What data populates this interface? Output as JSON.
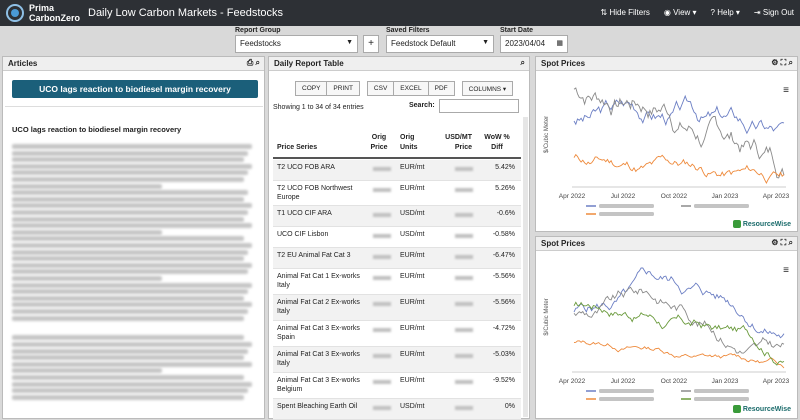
{
  "header": {
    "brand_line1": "Prima",
    "brand_line2": "CarbonZero",
    "title": "Daily Low Carbon Markets - Feedstocks",
    "menu": [
      "Hide Filters",
      "View",
      "Help",
      "Sign Out"
    ]
  },
  "filters": {
    "report_group_label": "Report Group",
    "report_group_value": "Feedstocks",
    "add_label": "+",
    "saved_filters_label": "Saved Filters",
    "saved_filters_value": "Feedstock Default",
    "start_date_label": "Start Date",
    "start_date_value": "2023/04/04"
  },
  "articles": {
    "panel_title": "Articles",
    "headline_button": "UCO lags reaction to biodiesel margin recovery",
    "article_title": "UCO lags reaction to biodiesel margin recovery"
  },
  "report": {
    "panel_title": "Daily Report Table",
    "buttons": [
      "COPY",
      "PRINT",
      "CSV",
      "EXCEL",
      "PDF",
      "COLUMNS ▾"
    ],
    "showing": "Showing 1 to 34 of 34 entries",
    "search_label": "Search:",
    "columns": [
      "Price Series",
      "Orig Price",
      "Orig Units",
      "USD/MT Price",
      "WoW % Diff"
    ],
    "rows": [
      {
        "series": "T2 UCO FOB ARA",
        "units": "EUR/mt",
        "diff": "5.42%"
      },
      {
        "series": "T2 UCO FOB Northwest Europe",
        "units": "EUR/mt",
        "diff": "5.26%"
      },
      {
        "series": "T1 UCO CIF ARA",
        "units": "USD/mt",
        "diff": "-0.6%"
      },
      {
        "series": "UCO CIF Lisbon",
        "units": "USD/mt",
        "diff": "-0.58%"
      },
      {
        "series": "T2 EU Animal Fat Cat 3",
        "units": "EUR/mt",
        "diff": "-6.47%"
      },
      {
        "series": "Animal Fat Cat 1 Ex-works Italy",
        "units": "EUR/mt",
        "diff": "-5.56%"
      },
      {
        "series": "Animal Fat Cat 2 Ex-works Italy",
        "units": "EUR/mt",
        "diff": "-5.56%"
      },
      {
        "series": "Animal Fat Cat 3 Ex-works Spain",
        "units": "EUR/mt",
        "diff": "-4.72%"
      },
      {
        "series": "Animal Fat Cat 3 Ex-works Italy",
        "units": "EUR/mt",
        "diff": "-5.03%"
      },
      {
        "series": "Animal Fat Cat 3 Ex-works Belgium",
        "units": "EUR/mt",
        "diff": "-9.52%"
      },
      {
        "series": "Spent Bleaching Earth Oil",
        "units": "USD/mt",
        "diff": "0%"
      }
    ]
  },
  "spot1": {
    "panel_title": "Spot Prices",
    "ylabel": "$/Cubic Meter",
    "xticks": [
      "Apr 2022",
      "Jul 2022",
      "Oct 2022",
      "Jan 2023",
      "Apr 2023"
    ],
    "brand": "ResourceWise",
    "colors": [
      "#6c7fc4",
      "#8a8a8a",
      "#ee8a3c"
    ]
  },
  "spot2": {
    "panel_title": "Spot Prices",
    "ylabel": "$/Cubic Meter",
    "xticks": [
      "Apr 2022",
      "Jul 2022",
      "Oct 2022",
      "Jan 2023",
      "Apr 2023"
    ],
    "brand": "ResourceWise",
    "colors": [
      "#6c7fc4",
      "#8a8a8a",
      "#ee8a3c",
      "#6a9a3c"
    ]
  }
}
